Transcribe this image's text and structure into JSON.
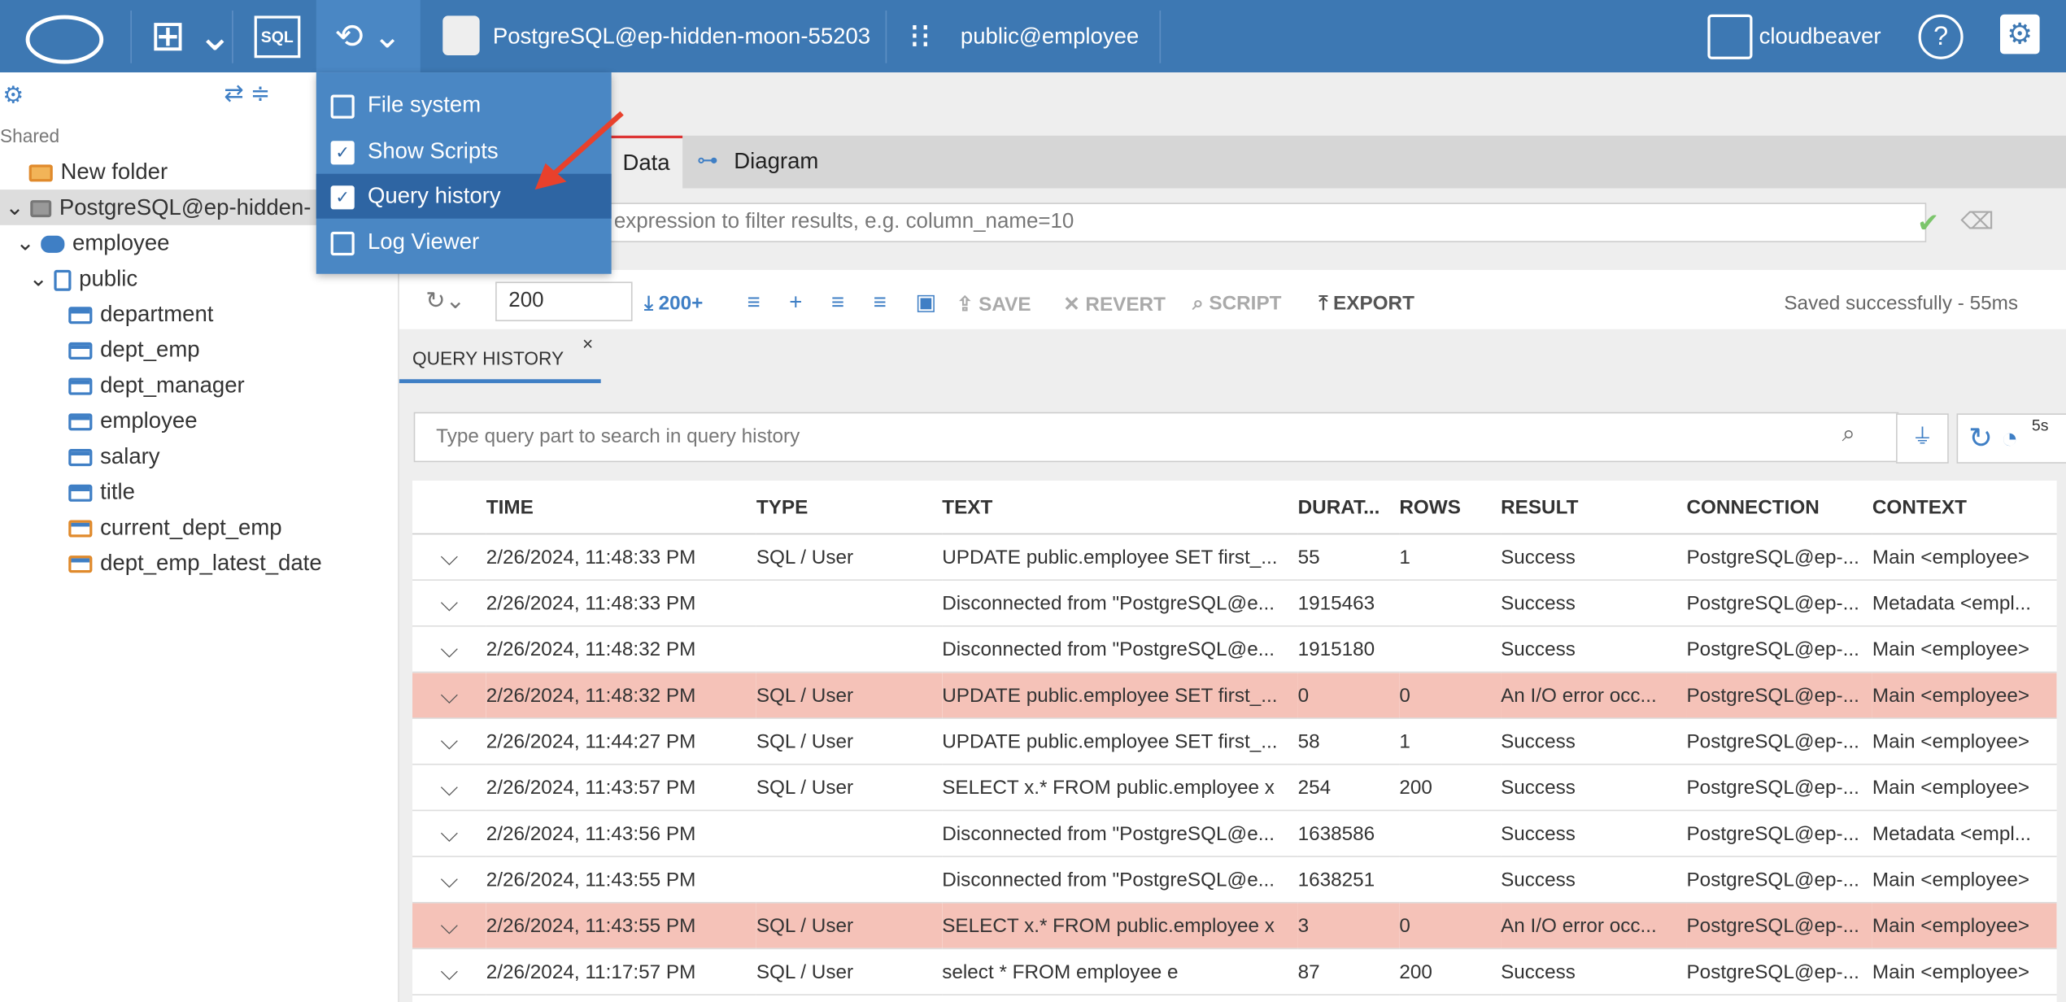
{
  "topbar": {
    "sql": "SQL",
    "connection": "PostgreSQL@ep-hidden-moon-55203",
    "schema": "public@employee",
    "user": "cloudbeaver"
  },
  "sidebar": {
    "section": "Shared",
    "tree": [
      "New folder",
      "PostgreSQL@ep-hidden-",
      "employee",
      "public",
      "department",
      "dept_emp",
      "dept_manager",
      "employee",
      "salary",
      "title",
      "current_dept_emp",
      "dept_emp_latest_date"
    ]
  },
  "menu": {
    "items": [
      {
        "label": "File system",
        "checked": false
      },
      {
        "label": "Show Scripts",
        "checked": true
      },
      {
        "label": "Query history",
        "checked": true
      },
      {
        "label": "Log Viewer",
        "checked": false
      }
    ]
  },
  "editor": {
    "tabs": [
      "Data",
      "Diagram"
    ],
    "filter_placeholder": "expression to filter results, e.g. column_name=10",
    "fetch_size": "200",
    "buttons": [
      "200+",
      "SAVE",
      "REVERT",
      "SCRIPT",
      "EXPORT"
    ],
    "status": "Saved successfully - 55ms"
  },
  "query_history": {
    "tab": "QUERY HISTORY",
    "search_placeholder": "Type query part to search in query history",
    "badge": "5s",
    "columns": [
      "TIME",
      "TYPE",
      "TEXT",
      "DURAT...",
      "ROWS",
      "RESULT",
      "CONNECTION",
      "CONTEXT"
    ],
    "rows": [
      {
        "cells": [
          "2/26/2024, 11:48:33 PM",
          "SQL / User",
          "UPDATE public.employee SET first_...",
          55,
          1,
          "Success",
          "PostgreSQL@ep-...",
          "Main <employee>"
        ],
        "highlight": false
      },
      {
        "cells": [
          "2/26/2024, 11:48:33 PM",
          null,
          "Disconnected from \"PostgreSQL@e...",
          1915463,
          null,
          "Success",
          "PostgreSQL@ep-...",
          "Metadata <empl..."
        ],
        "highlight": false
      },
      {
        "cells": [
          "2/26/2024, 11:48:32 PM",
          null,
          "Disconnected from \"PostgreSQL@e...",
          1915180,
          null,
          "Success",
          "PostgreSQL@ep-...",
          "Main <employee>"
        ],
        "highlight": false
      },
      {
        "cells": [
          "2/26/2024, 11:48:32 PM",
          "SQL / User",
          "UPDATE public.employee SET first_...",
          0,
          0,
          "An I/O error occ...",
          "PostgreSQL@ep-...",
          "Main <employee>"
        ],
        "highlight": true
      },
      {
        "cells": [
          "2/26/2024, 11:44:27 PM",
          "SQL / User",
          "UPDATE public.employee SET first_...",
          58,
          1,
          "Success",
          "PostgreSQL@ep-...",
          "Main <employee>"
        ],
        "highlight": false
      },
      {
        "cells": [
          "2/26/2024, 11:43:57 PM",
          "SQL / User",
          "SELECT x.* FROM public.employee x",
          254,
          200,
          "Success",
          "PostgreSQL@ep-...",
          "Main <employee>"
        ],
        "highlight": false
      },
      {
        "cells": [
          "2/26/2024, 11:43:56 PM",
          null,
          "Disconnected from \"PostgreSQL@e...",
          1638586,
          null,
          "Success",
          "PostgreSQL@ep-...",
          "Metadata <empl..."
        ],
        "highlight": false
      },
      {
        "cells": [
          "2/26/2024, 11:43:55 PM",
          null,
          "Disconnected from \"PostgreSQL@e...",
          1638251,
          null,
          "Success",
          "PostgreSQL@ep-...",
          "Main <employee>"
        ],
        "highlight": false
      },
      {
        "cells": [
          "2/26/2024, 11:43:55 PM",
          "SQL / User",
          "SELECT x.* FROM public.employee x",
          3,
          0,
          "An I/O error occ...",
          "PostgreSQL@ep-...",
          "Main <employee>"
        ],
        "highlight": true
      },
      {
        "cells": [
          "2/26/2024, 11:17:57 PM",
          "SQL / User",
          "select * FROM employee e",
          87,
          200,
          "Success",
          "PostgreSQL@ep-...",
          "Main <employee>"
        ],
        "highlight": false
      }
    ]
  }
}
